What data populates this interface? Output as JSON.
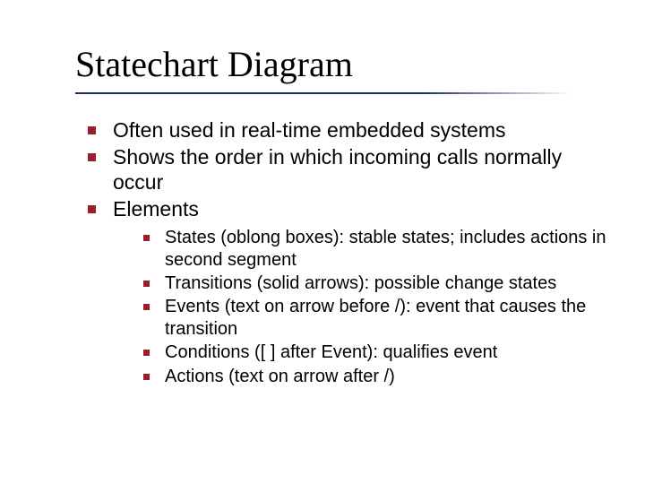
{
  "slide": {
    "title": "Statechart Diagram",
    "colors": {
      "bullet": "#9a1f2e",
      "underline": "#1f2f66",
      "text": "#000000",
      "background": "#ffffff"
    },
    "typography": {
      "title_font": "Times New Roman",
      "title_size_pt": 40,
      "body_font": "Verdana",
      "level1_size_pt": 23,
      "level2_size_pt": 20
    },
    "bullets": [
      {
        "text": "Often used in real-time embedded systems"
      },
      {
        "text": "Shows the order in which incoming calls normally occur"
      },
      {
        "text": "Elements",
        "children": [
          {
            "text": "States (oblong boxes): stable states; includes actions in second segment"
          },
          {
            "text": "Transitions (solid arrows): possible change states"
          },
          {
            "text": "Events (text on arrow before /): event that causes the transition"
          },
          {
            "text": "Conditions ([ ] after Event): qualifies event"
          },
          {
            "text": "Actions (text on arrow after /)"
          }
        ]
      }
    ]
  }
}
